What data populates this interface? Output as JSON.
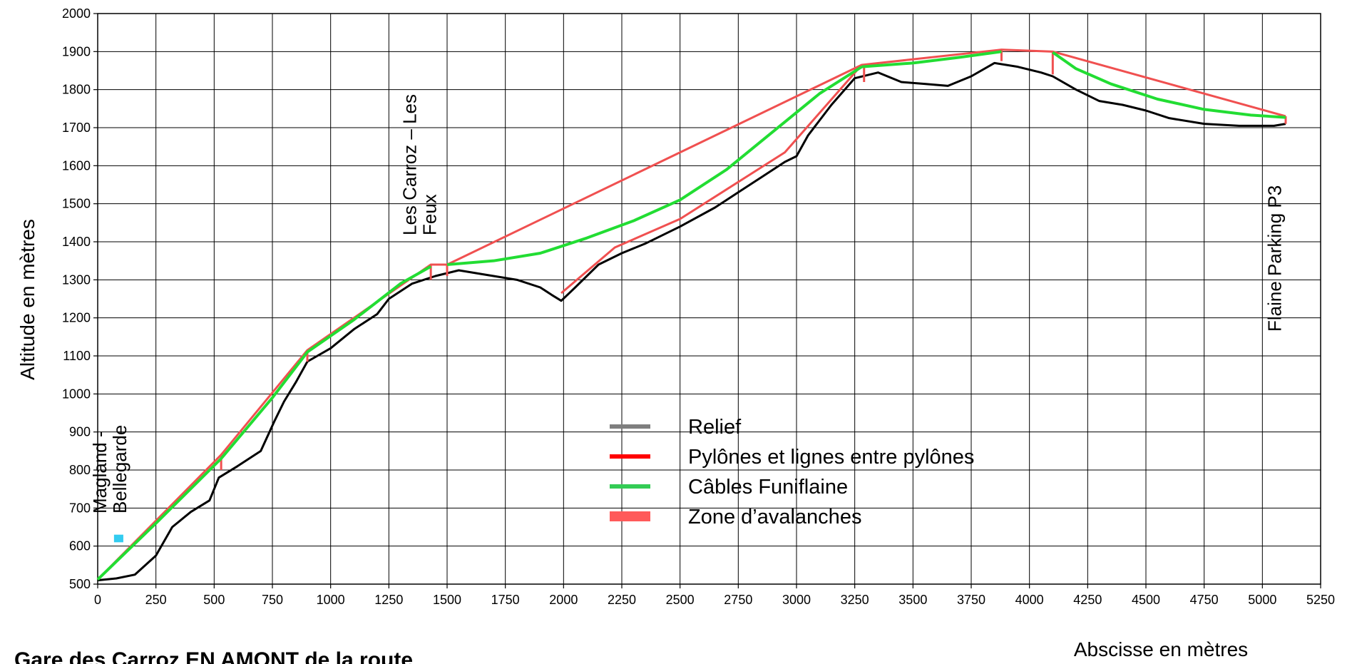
{
  "chart_data": {
    "type": "line",
    "xlabel": "Abscisse en mètres",
    "ylabel": "Altitude en mètres",
    "xlim": [
      0,
      5250
    ],
    "ylim": [
      500,
      2000
    ],
    "x_ticks": [
      0,
      250,
      500,
      750,
      1000,
      1250,
      1500,
      1750,
      2000,
      2250,
      2500,
      2750,
      3000,
      3250,
      3500,
      3750,
      4000,
      4250,
      4500,
      4750,
      5000,
      5250
    ],
    "y_ticks": [
      500,
      600,
      700,
      800,
      900,
      1000,
      1100,
      1200,
      1300,
      1400,
      1500,
      1600,
      1700,
      1800,
      1900,
      2000
    ],
    "grid": true,
    "legend_position": "center-bottom",
    "series": [
      {
        "name": "Relief",
        "legend_color": "#7f7f7f",
        "line_color": "#000000",
        "points": [
          [
            0,
            510
          ],
          [
            80,
            515
          ],
          [
            160,
            525
          ],
          [
            250,
            575
          ],
          [
            320,
            650
          ],
          [
            400,
            690
          ],
          [
            480,
            720
          ],
          [
            520,
            780
          ],
          [
            600,
            810
          ],
          [
            700,
            850
          ],
          [
            760,
            930
          ],
          [
            800,
            980
          ],
          [
            850,
            1030
          ],
          [
            900,
            1085
          ],
          [
            1000,
            1120
          ],
          [
            1100,
            1170
          ],
          [
            1200,
            1210
          ],
          [
            1250,
            1250
          ],
          [
            1350,
            1290
          ],
          [
            1450,
            1310
          ],
          [
            1550,
            1325
          ],
          [
            1650,
            1315
          ],
          [
            1800,
            1300
          ],
          [
            1900,
            1280
          ],
          [
            1950,
            1260
          ],
          [
            1990,
            1245
          ],
          [
            2050,
            1280
          ],
          [
            2150,
            1340
          ],
          [
            2250,
            1370
          ],
          [
            2350,
            1395
          ],
          [
            2500,
            1440
          ],
          [
            2650,
            1490
          ],
          [
            2750,
            1530
          ],
          [
            2850,
            1570
          ],
          [
            2950,
            1610
          ],
          [
            3000,
            1625
          ],
          [
            3050,
            1680
          ],
          [
            3150,
            1760
          ],
          [
            3250,
            1830
          ],
          [
            3350,
            1845
          ],
          [
            3450,
            1820
          ],
          [
            3550,
            1815
          ],
          [
            3650,
            1810
          ],
          [
            3750,
            1835
          ],
          [
            3850,
            1870
          ],
          [
            3950,
            1860
          ],
          [
            4050,
            1845
          ],
          [
            4100,
            1835
          ],
          [
            4200,
            1800
          ],
          [
            4300,
            1770
          ],
          [
            4400,
            1760
          ],
          [
            4500,
            1745
          ],
          [
            4600,
            1725
          ],
          [
            4750,
            1710
          ],
          [
            4900,
            1705
          ],
          [
            5050,
            1705
          ],
          [
            5100,
            1710
          ]
        ]
      },
      {
        "name": "Pylônes et lignes entre pylônes",
        "legend_color": "#ff0000",
        "line_color": "#f05050",
        "segments": [
          [
            [
              0,
              512
            ],
            [
              530,
              840
            ],
            [
              900,
              1115
            ],
            [
              1430,
              1340
            ],
            [
              1500,
              1340
            ],
            [
              3280,
              1865
            ],
            [
              3880,
              1905
            ],
            [
              4100,
              1900
            ],
            [
              5100,
              1730
            ]
          ],
          [
            [
              1990,
              1265
            ],
            [
              2220,
              1385
            ],
            [
              2500,
              1460
            ],
            [
              2950,
              1635
            ],
            [
              3280,
              1865
            ]
          ]
        ],
        "pylons": [
          [
            530,
            840,
            800
          ],
          [
            900,
            1115,
            1085
          ],
          [
            1430,
            1340,
            1300
          ],
          [
            1500,
            1340,
            1310
          ],
          [
            3290,
            1865,
            1820
          ],
          [
            3880,
            1905,
            1875
          ],
          [
            4100,
            1900,
            1840
          ],
          [
            5100,
            1730,
            1710
          ]
        ]
      },
      {
        "name": "Câbles Funiflaine",
        "legend_color": "#33cc55",
        "line_color": "#22dd33",
        "segments": [
          [
            [
              0,
              512
            ],
            [
              250,
              660
            ],
            [
              530,
              830
            ],
            [
              750,
              990
            ],
            [
              900,
              1110
            ],
            [
              1100,
              1195
            ],
            [
              1300,
              1290
            ],
            [
              1430,
              1335
            ]
          ],
          [
            [
              1500,
              1340
            ],
            [
              1700,
              1350
            ],
            [
              1900,
              1370
            ],
            [
              2100,
              1410
            ],
            [
              2300,
              1455
            ],
            [
              2500,
              1510
            ],
            [
              2700,
              1590
            ],
            [
              2900,
              1690
            ],
            [
              3100,
              1790
            ],
            [
              3280,
              1860
            ]
          ],
          [
            [
              3280,
              1860
            ],
            [
              3500,
              1870
            ],
            [
              3700,
              1885
            ],
            [
              3880,
              1900
            ]
          ],
          [
            [
              4100,
              1898
            ],
            [
              4200,
              1855
            ],
            [
              4350,
              1815
            ],
            [
              4550,
              1775
            ],
            [
              4750,
              1748
            ],
            [
              4950,
              1733
            ],
            [
              5100,
              1727
            ]
          ]
        ]
      },
      {
        "name": "Zone d’avalanches",
        "legend_color": "#ff5a5a",
        "areas": [
          {
            "x": [
              70,
              110
            ],
            "y": [
              610,
              630
            ],
            "color": "#33ccf0"
          }
        ]
      }
    ]
  },
  "stations": [
    {
      "lines": [
        "Magland -",
        "Bellegarde"
      ],
      "x": 110
    },
    {
      "lines": [
        "Les Carroz – Les",
        "Feux"
      ],
      "x": 1440
    },
    {
      "lines": [
        "Flaine Parking P3"
      ],
      "x": 5110
    }
  ],
  "caption": "Gare des Carroz EN AMONT de la route"
}
